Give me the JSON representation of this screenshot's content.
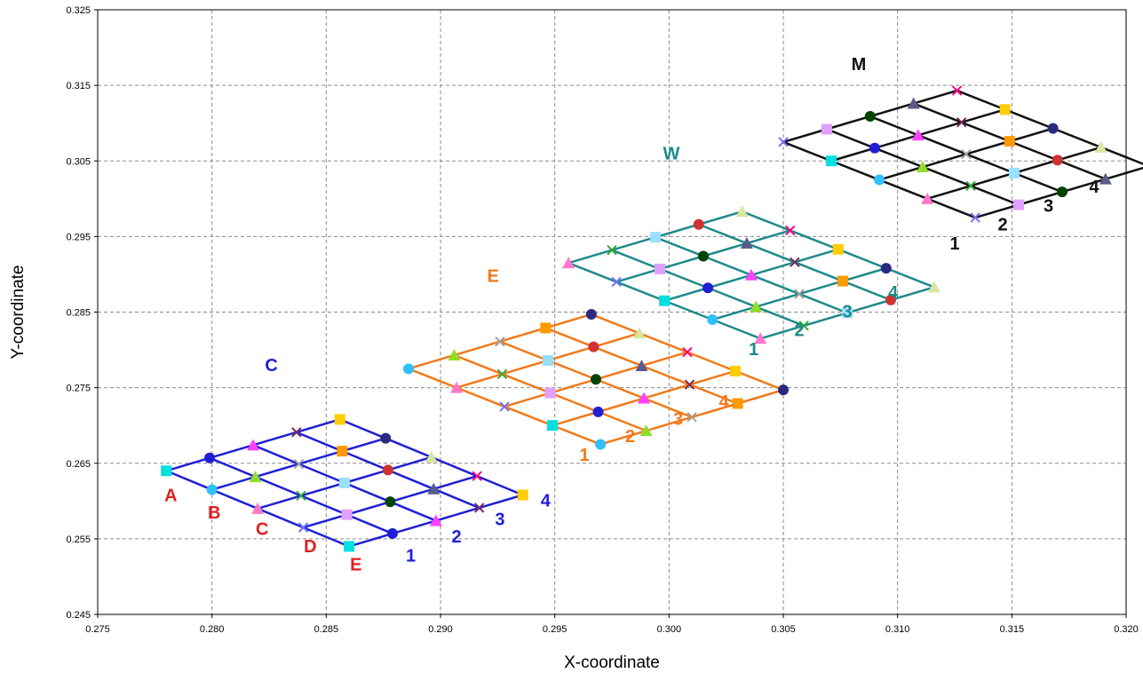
{
  "chart_data": {
    "type": "scatter",
    "xlabel": "X-coordinate",
    "ylabel": "Y-coordinate",
    "xlim": [
      0.275,
      0.32
    ],
    "ylim": [
      0.245,
      0.325
    ],
    "x_ticks": [
      "0.275",
      "0.280",
      "0.285",
      "0.290",
      "0.295",
      "0.300",
      "0.305",
      "0.310",
      "0.315",
      "0.320"
    ],
    "y_ticks": [
      "0.245",
      "0.255",
      "0.265",
      "0.275",
      "0.285",
      "0.295",
      "0.305",
      "0.315",
      "0.325"
    ],
    "grid": true,
    "grids": [
      {
        "name": "C",
        "color": "#1f1fd6",
        "origin": [
          0.278,
          0.264
        ],
        "row_step": [
          0.002,
          -0.0025
        ],
        "col_step": [
          0.0019,
          0.0017
        ],
        "rows": 5,
        "cols": 5,
        "row_labels": [
          "A",
          "B",
          "C",
          "D",
          "E"
        ],
        "col_labels": [
          "1",
          "2",
          "3",
          "4"
        ]
      },
      {
        "name": "E",
        "color": "#f07a1a",
        "origin": [
          0.2886,
          0.2775
        ],
        "row_step": [
          0.0021,
          -0.0025
        ],
        "col_step": [
          0.002,
          0.0018
        ],
        "rows": 5,
        "cols": 5,
        "row_labels": [],
        "col_labels": [
          "1",
          "2",
          "3",
          "4"
        ]
      },
      {
        "name": "W",
        "color": "#1e8a8a",
        "origin": [
          0.2956,
          0.2915
        ],
        "row_step": [
          0.0021,
          -0.0025
        ],
        "col_step": [
          0.0019,
          0.0017
        ],
        "rows": 5,
        "cols": 5,
        "row_labels": [],
        "col_labels": [
          "1",
          "2",
          "3",
          "4"
        ]
      },
      {
        "name": "M",
        "color": "#111111",
        "origin": [
          0.305,
          0.3075
        ],
        "row_step": [
          0.0021,
          -0.0025
        ],
        "col_step": [
          0.0019,
          0.0017
        ],
        "rows": 5,
        "cols": 5,
        "row_labels": [],
        "col_labels": [
          "1",
          "2",
          "3",
          "4"
        ]
      }
    ],
    "annotations": [
      {
        "text": "C",
        "color": "#1f1fd6",
        "x": 0.2826,
        "y": 0.2772
      },
      {
        "text": "A",
        "color": "#e02020",
        "x": 0.2782,
        "y": 0.26
      },
      {
        "text": "B",
        "color": "#e02020",
        "x": 0.2801,
        "y": 0.2577
      },
      {
        "text": "C",
        "color": "#e02020",
        "x": 0.2822,
        "y": 0.2555
      },
      {
        "text": "D",
        "color": "#e02020",
        "x": 0.2843,
        "y": 0.2532
      },
      {
        "text": "E",
        "color": "#e02020",
        "x": 0.2863,
        "y": 0.2508
      },
      {
        "text": "1",
        "color": "#1f1fd6",
        "x": 0.2887,
        "y": 0.252
      },
      {
        "text": "2",
        "color": "#1f1fd6",
        "x": 0.2907,
        "y": 0.2545
      },
      {
        "text": "3",
        "color": "#1f1fd6",
        "x": 0.2926,
        "y": 0.2568
      },
      {
        "text": "4",
        "color": "#1f1fd6",
        "x": 0.2946,
        "y": 0.2593
      },
      {
        "text": "E",
        "color": "#f07a1a",
        "x": 0.2923,
        "y": 0.289
      },
      {
        "text": "1",
        "color": "#f07a1a",
        "x": 0.2963,
        "y": 0.2653
      },
      {
        "text": "2",
        "color": "#f07a1a",
        "x": 0.2983,
        "y": 0.2678
      },
      {
        "text": "3",
        "color": "#f07a1a",
        "x": 0.3004,
        "y": 0.2701
      },
      {
        "text": "4",
        "color": "#f07a1a",
        "x": 0.3024,
        "y": 0.2724
      },
      {
        "text": "W",
        "color": "#1e8a8a",
        "x": 0.3001,
        "y": 0.3052
      },
      {
        "text": "1",
        "color": "#1e8a8a",
        "x": 0.3037,
        "y": 0.2793
      },
      {
        "text": "2",
        "color": "#1e8a8a",
        "x": 0.3057,
        "y": 0.2818
      },
      {
        "text": "3",
        "color": "#1e8a8a",
        "x": 0.3078,
        "y": 0.2843
      },
      {
        "text": "4",
        "color": "#1e8a8a",
        "x": 0.3098,
        "y": 0.2868
      },
      {
        "text": "M",
        "color": "#111111",
        "x": 0.3083,
        "y": 0.317
      },
      {
        "text": "1",
        "color": "#111111",
        "x": 0.3125,
        "y": 0.2933
      },
      {
        "text": "2",
        "color": "#111111",
        "x": 0.3146,
        "y": 0.2958
      },
      {
        "text": "3",
        "color": "#111111",
        "x": 0.3166,
        "y": 0.2983
      },
      {
        "text": "4",
        "color": "#111111",
        "x": 0.3186,
        "y": 0.3008
      }
    ]
  }
}
